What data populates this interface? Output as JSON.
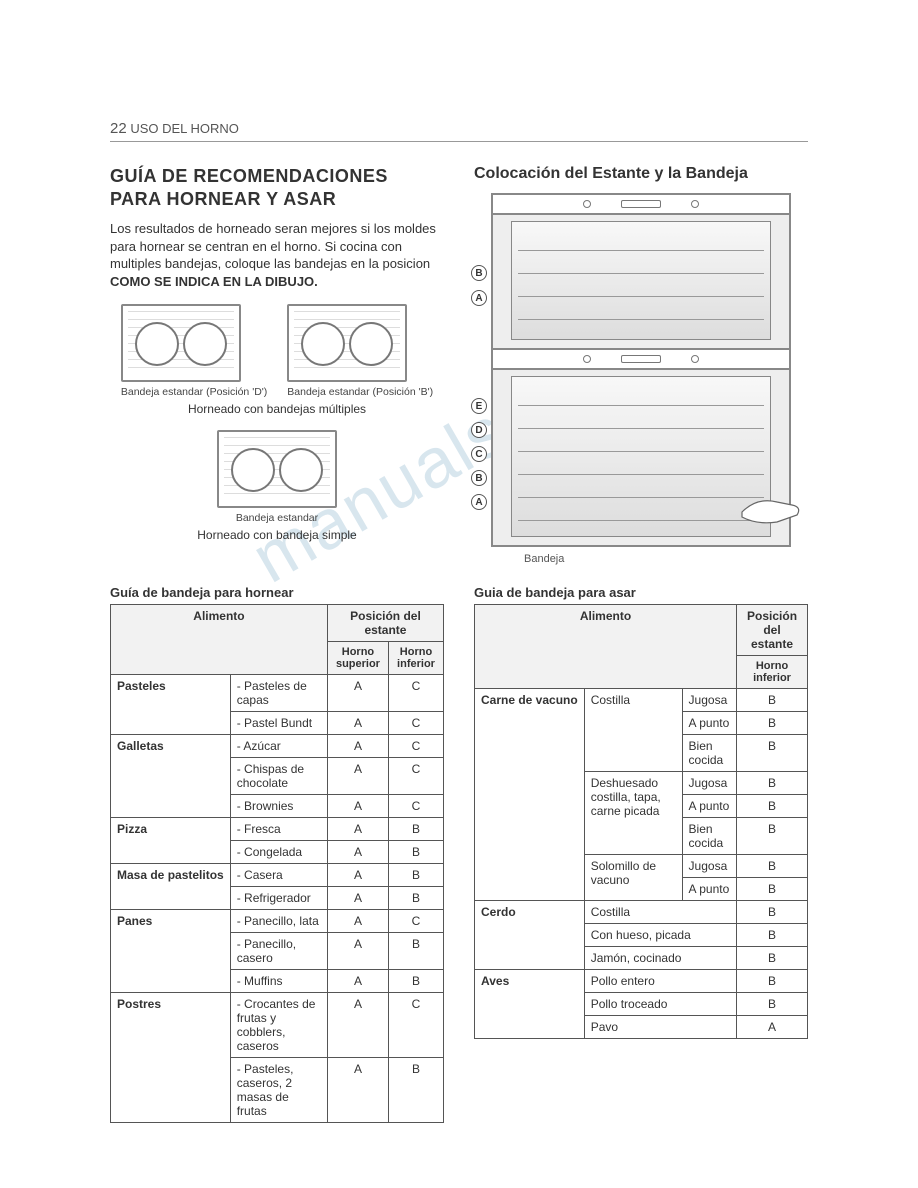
{
  "page": {
    "number": "22",
    "section": "USO DEL HORNO"
  },
  "heading": "GUÍA DE RECOMENDACIONES PARA HORNEAR Y ASAR",
  "intro": {
    "text": "Los resultados de horneado seran mejores si los moldes para hornear se centran en el horno. Si cocina con multiples bandejas, coloque las bandejas en la posicion ",
    "bold": "COMO SE INDICA EN LA DIBUJO."
  },
  "trays": {
    "d_pos": "Bandeja estandar (Posición 'D')",
    "b_pos": "Bandeja estandar (Posición 'B')",
    "multi": "Horneado con bandejas múltiples",
    "single_cap": "Bandeja estandar",
    "single": "Horneado con bandeja simple"
  },
  "right_heading": "Colocación del Estante y la Bandeja",
  "oven": {
    "upper_labels": [
      "B",
      "A"
    ],
    "lower_labels": [
      "E",
      "D",
      "C",
      "B",
      "A"
    ],
    "bandeja": "Bandeja"
  },
  "watermark": "manualshive.com",
  "bake_table": {
    "title": "Guía de bandeja para hornear",
    "h_food": "Alimento",
    "h_pos": "Posición del estante",
    "h_upper": "Horno superior",
    "h_lower": "Horno inferior",
    "groups": [
      {
        "cat": "Pasteles",
        "rows": [
          {
            "item": "- Pasteles de capas",
            "u": "A",
            "l": "C"
          },
          {
            "item": "- Pastel Bundt",
            "u": "A",
            "l": "C"
          }
        ]
      },
      {
        "cat": "Galletas",
        "rows": [
          {
            "item": "- Azúcar",
            "u": "A",
            "l": "C"
          },
          {
            "item": "- Chispas de chocolate",
            "u": "A",
            "l": "C"
          },
          {
            "item": "- Brownies",
            "u": "A",
            "l": "C"
          }
        ]
      },
      {
        "cat": "Pizza",
        "rows": [
          {
            "item": "- Fresca",
            "u": "A",
            "l": "B"
          },
          {
            "item": "- Congelada",
            "u": "A",
            "l": "B"
          }
        ]
      },
      {
        "cat": "Masa de pastelitos",
        "rows": [
          {
            "item": "- Casera",
            "u": "A",
            "l": "B"
          },
          {
            "item": "- Refrigerador",
            "u": "A",
            "l": "B"
          }
        ]
      },
      {
        "cat": "Panes",
        "rows": [
          {
            "item": "- Panecillo, lata",
            "u": "A",
            "l": "C"
          },
          {
            "item": "- Panecillo, casero",
            "u": "A",
            "l": "B"
          },
          {
            "item": "- Muffins",
            "u": "A",
            "l": "B"
          }
        ]
      },
      {
        "cat": "Postres",
        "rows": [
          {
            "item": "- Crocantes de frutas y cobblers, caseros",
            "u": "A",
            "l": "C"
          },
          {
            "item": "- Pasteles, caseros, 2 masas de frutas",
            "u": "A",
            "l": "B"
          }
        ]
      }
    ]
  },
  "roast_table": {
    "title": "Guia de bandeja para asar",
    "h_food": "Alimento",
    "h_pos": "Posición del estante",
    "h_lower": "Horno inferior",
    "groups": [
      {
        "cat": "Carne de vacuno",
        "subgroups": [
          {
            "cut": "Costilla",
            "rows": [
              {
                "done": "Jugosa",
                "p": "B"
              },
              {
                "done": "A punto",
                "p": "B"
              },
              {
                "done": "Bien cocida",
                "p": "B"
              }
            ]
          },
          {
            "cut": "Deshuesado costilla, tapa, carne picada",
            "rows": [
              {
                "done": "Jugosa",
                "p": "B"
              },
              {
                "done": "A punto",
                "p": "B"
              },
              {
                "done": "Bien cocida",
                "p": "B"
              }
            ]
          },
          {
            "cut": "Solomillo de vacuno",
            "rows": [
              {
                "done": "Jugosa",
                "p": "B"
              },
              {
                "done": "A punto",
                "p": "B"
              }
            ]
          }
        ]
      },
      {
        "cat": "Cerdo",
        "simple": [
          {
            "cut": "Costilla",
            "p": "B"
          },
          {
            "cut": "Con hueso, picada",
            "p": "B"
          },
          {
            "cut": "Jamón, cocinado",
            "p": "B"
          }
        ]
      },
      {
        "cat": "Aves",
        "simple": [
          {
            "cut": "Pollo entero",
            "p": "B"
          },
          {
            "cut": "Pollo troceado",
            "p": "B"
          },
          {
            "cut": "Pavo",
            "p": "A"
          }
        ]
      }
    ]
  }
}
